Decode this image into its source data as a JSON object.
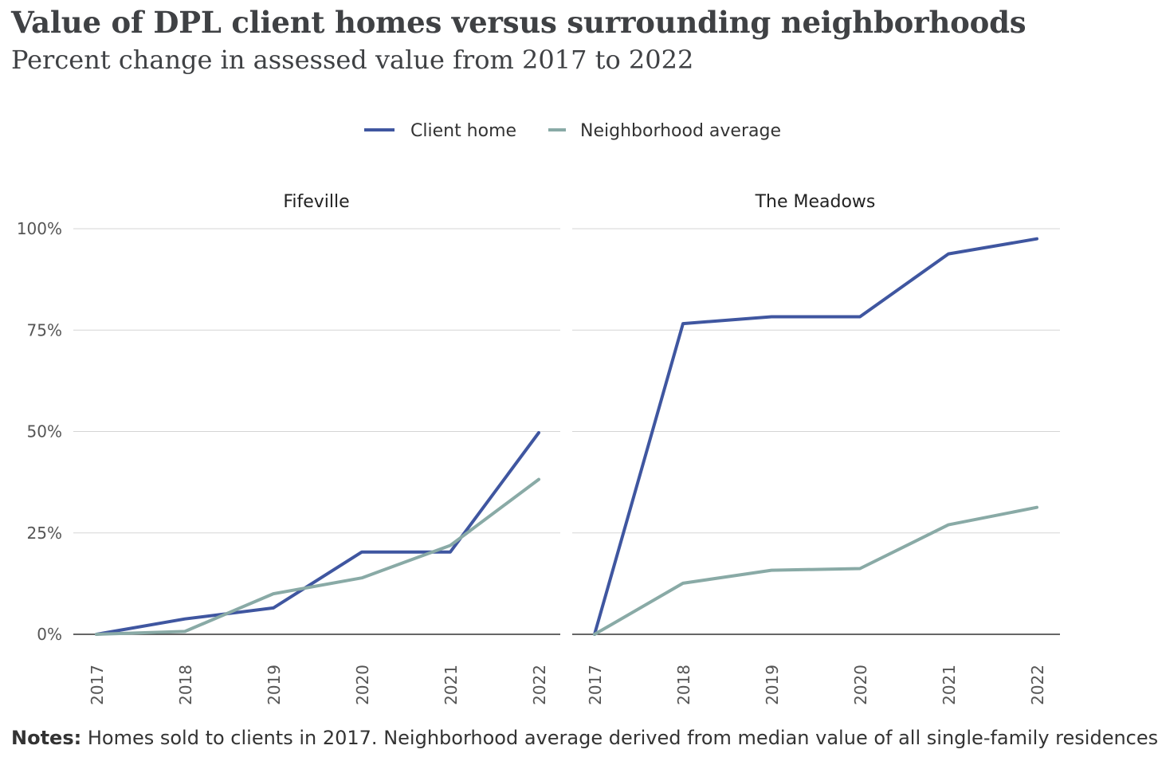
{
  "title": "Value of DPL client homes versus surrounding neighborhoods",
  "subtitle": "Percent change in assessed value from 2017 to 2022",
  "notes_label": "Notes:",
  "notes_text": " Homes sold to clients in 2017. Neighborhood average derived from median value of all single-family residences",
  "colors": {
    "client": "#3f56a0",
    "neighborhood": "#89aaa6",
    "grid": "#d5d5d5",
    "axis": "#333333"
  },
  "chart_data": {
    "type": "line",
    "legend": [
      "Client home",
      "Neighborhood average"
    ],
    "x": [
      "2017",
      "2018",
      "2019",
      "2020",
      "2021",
      "2022"
    ],
    "ylim": [
      0,
      100
    ],
    "yticks": [
      "0%",
      "25%",
      "50%",
      "75%",
      "100%"
    ],
    "ytick_values": [
      0,
      25,
      50,
      75,
      100
    ],
    "panels": [
      {
        "facet": "Fifeville",
        "series": [
          {
            "name": "Client home",
            "values": [
              0,
              3.8,
              6.5,
              20.3,
              20.3,
              49.7
            ]
          },
          {
            "name": "Neighborhood average",
            "values": [
              0,
              0.7,
              10.0,
              13.9,
              21.9,
              38.2
            ]
          }
        ]
      },
      {
        "facet": "The Meadows",
        "series": [
          {
            "name": "Client home",
            "values": [
              0,
              76.6,
              78.3,
              78.3,
              93.8,
              97.5
            ]
          },
          {
            "name": "Neighborhood average",
            "values": [
              0,
              12.6,
              15.8,
              16.2,
              27.0,
              31.3
            ]
          }
        ]
      }
    ]
  }
}
